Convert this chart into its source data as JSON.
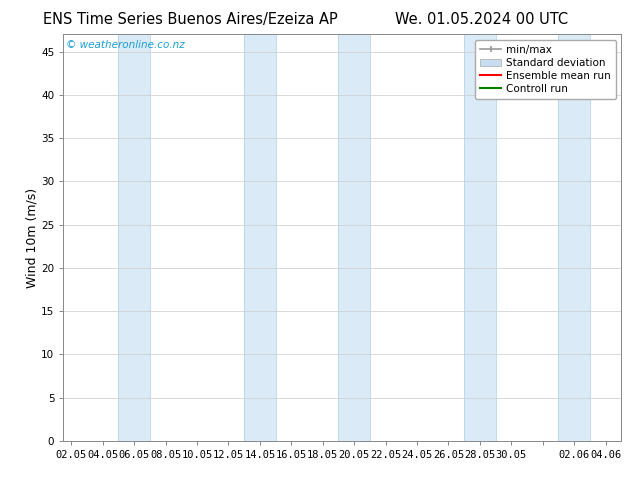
{
  "title_left": "ENS Time Series Buenos Aires/Ezeiza AP",
  "title_right": "We. 01.05.2024 00 UTC",
  "ylabel": "Wind 10m (m/s)",
  "ylim": [
    0,
    47
  ],
  "yticks": [
    0,
    5,
    10,
    15,
    20,
    25,
    30,
    35,
    40,
    45
  ],
  "xtick_labels": [
    "02.05",
    "04.05",
    "06.05",
    "08.05",
    "10.05",
    "12.05",
    "14.05",
    "16.05",
    "18.05",
    "20.05",
    "22.05",
    "24.05",
    "26.05",
    "28.05",
    "30.05",
    "",
    "02.06",
    "04.06"
  ],
  "xtick_positions": [
    0,
    2,
    4,
    6,
    8,
    10,
    12,
    14,
    16,
    18,
    20,
    22,
    24,
    26,
    28,
    30,
    32,
    34
  ],
  "shaded_bands": [
    [
      3,
      5
    ],
    [
      11,
      13
    ],
    [
      17,
      19
    ],
    [
      25,
      27
    ],
    [
      31,
      33
    ]
  ],
  "shaded_color": "#daeaf6",
  "shaded_edge_color": "#b8d4ea",
  "background_color": "#ffffff",
  "plot_bg_color": "#ffffff",
  "grid_color": "#cccccc",
  "watermark_text": "© weatheronline.co.nz",
  "watermark_color": "#1a9ed4",
  "legend_items": [
    {
      "label": "min/max",
      "color": "#aaaaaa",
      "lw": 1.2
    },
    {
      "label": "Standard deviation",
      "color": "#c8ddf0",
      "lw": 6
    },
    {
      "label": "Ensemble mean run",
      "color": "#ff0000",
      "lw": 1.5
    },
    {
      "label": "Controll run",
      "color": "#008000",
      "lw": 1.5
    }
  ],
  "title_fontsize": 10.5,
  "tick_fontsize": 7.5,
  "ylabel_fontsize": 9,
  "legend_fontsize": 7.5,
  "xlim": [
    -0.5,
    35
  ]
}
